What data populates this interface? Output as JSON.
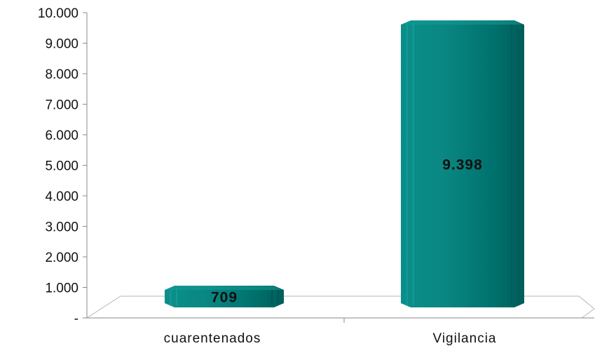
{
  "chart_data": {
    "type": "bar",
    "categories": [
      "cuarentenados",
      "Vigilancia"
    ],
    "values": [
      709,
      9398
    ],
    "data_labels": [
      "709",
      "9.398"
    ],
    "ylim": [
      0,
      10000
    ],
    "yticks": [
      0,
      1000,
      2000,
      3000,
      4000,
      5000,
      6000,
      7000,
      8000,
      9000,
      10000
    ],
    "ytick_labels": [
      "-",
      "1.000",
      "2.000",
      "3.000",
      "4.000",
      "5.000",
      "6.000",
      "7.000",
      "8.000",
      "9.000",
      "10.000"
    ],
    "title": "",
    "xlabel": "",
    "ylabel": "",
    "grid": false,
    "legend": "none",
    "bar_color": "#007a77",
    "bar_dark_color": "#005a57",
    "bar_light_color": "#119c97"
  }
}
